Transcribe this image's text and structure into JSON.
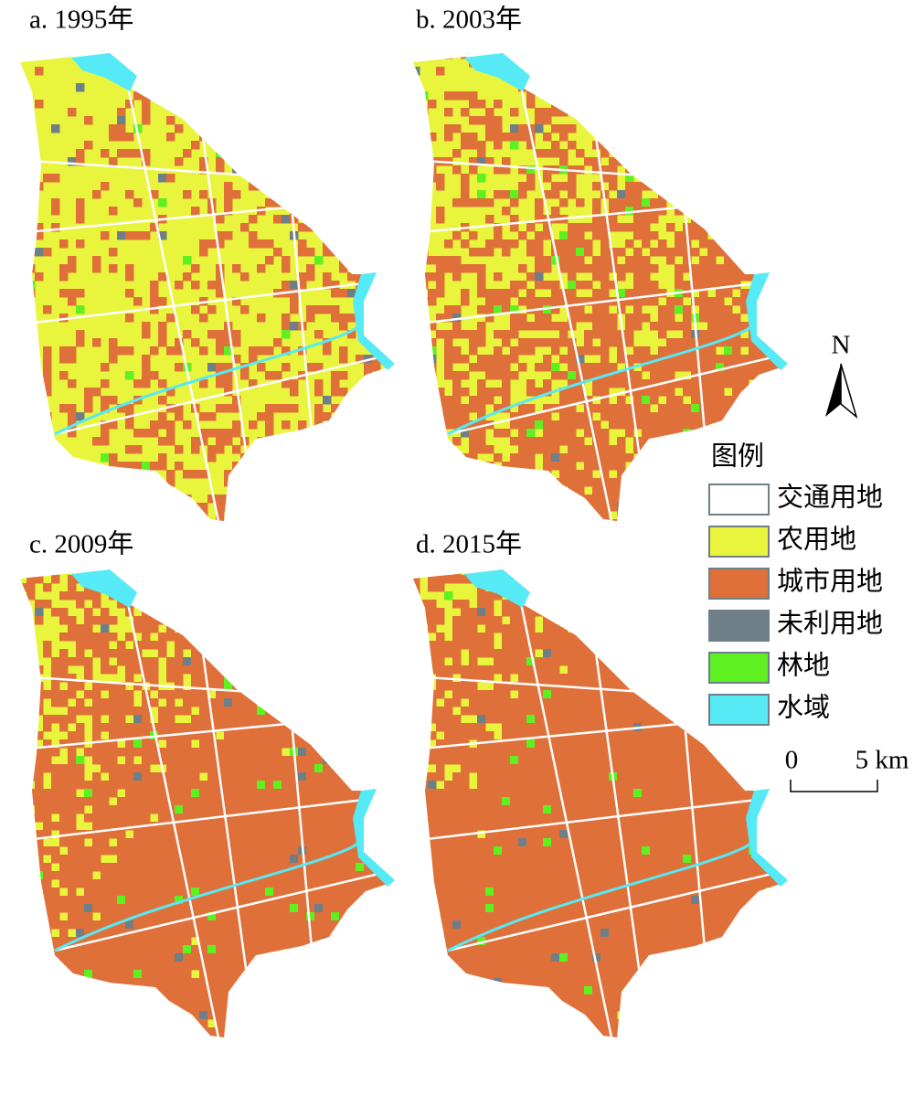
{
  "panels": [
    {
      "title": "a. 1995年"
    },
    {
      "title": "b. 2003年"
    },
    {
      "title": "c. 2009年"
    },
    {
      "title": "d. 2015年"
    }
  ],
  "legend": {
    "title": "图例",
    "items": [
      {
        "label": "交通用地",
        "color": "#ffffff"
      },
      {
        "label": "农用地",
        "color": "#e8f53c"
      },
      {
        "label": "城市用地",
        "color": "#e0703a"
      },
      {
        "label": "未利用地",
        "color": "#6f7f87"
      },
      {
        "label": "林地",
        "color": "#5ef020"
      },
      {
        "label": "水域",
        "color": "#55eaf5"
      }
    ]
  },
  "north_arrow": {
    "label": "N"
  },
  "scale_bar": {
    "start": "0",
    "end": "5 km"
  }
}
